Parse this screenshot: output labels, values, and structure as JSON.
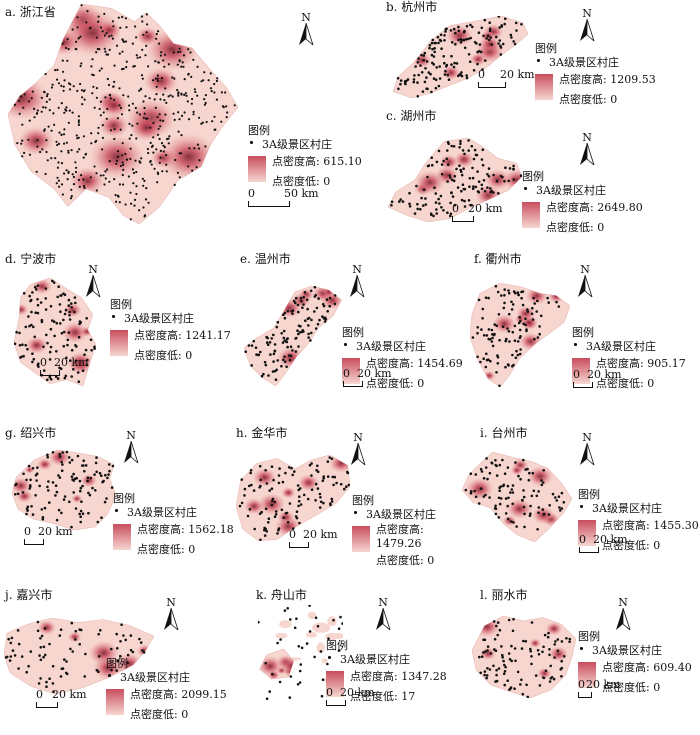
{
  "legend_labels": {
    "title": "图例",
    "village": "3A级景区村庄",
    "high": "点密度高",
    "low": "点密度低"
  },
  "north_label": "N",
  "colors": {
    "base": "#f7d6d0",
    "mid": "#e59a98",
    "high": "#c84d5e",
    "dark": "#7a1f2e",
    "dot": "#111111"
  },
  "panels": [
    {
      "title": "a. 浙江省",
      "high": "615.10",
      "low": "0",
      "scale": "50 km"
    },
    {
      "title": "b. 杭州市",
      "high": "1209.53",
      "low": "0",
      "scale": "20 km"
    },
    {
      "title": "c. 湖州市",
      "high": "2649.80",
      "low": "0",
      "scale": "20 km"
    },
    {
      "title": "d. 宁波市",
      "high": "1241.17",
      "low": "0",
      "scale": "20 km"
    },
    {
      "title": "e. 温州市",
      "high": "1454.69",
      "low": "0",
      "scale": "20 km"
    },
    {
      "title": "f. 衢州市",
      "high": "905.17",
      "low": "0",
      "scale": "20 km"
    },
    {
      "title": "g. 绍兴市",
      "high": "1562.18",
      "low": "0",
      "scale": "20 km"
    },
    {
      "title": "h. 金华市",
      "high": "1479.26",
      "low": "0",
      "scale": "20 km"
    },
    {
      "title": "i. 台州市",
      "high": "1455.30",
      "low": "0",
      "scale": "20 km"
    },
    {
      "title": "j. 嘉兴市",
      "high": "2099.15",
      "low": "0",
      "scale": "20 km"
    },
    {
      "title": "k. 舟山市",
      "high": "1347.28",
      "low": "17",
      "scale": "20 km"
    },
    {
      "title": "l. 丽水市",
      "high": "609.40",
      "low": "0",
      "scale": "20 km"
    }
  ]
}
